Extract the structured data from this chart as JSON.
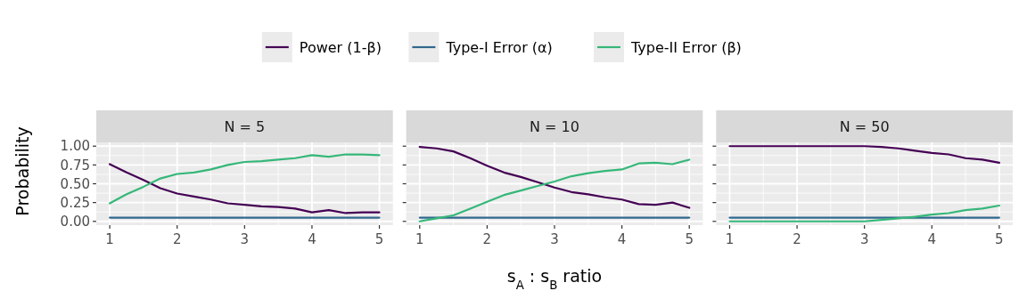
{
  "chart_data": [
    {
      "type": "line",
      "title": "N = 5",
      "ylabel": "Probability",
      "x": [
        1,
        1.25,
        1.5,
        1.75,
        2,
        2.25,
        2.5,
        2.75,
        3,
        3.25,
        3.5,
        3.75,
        4,
        4.25,
        4.5,
        4.75,
        5
      ],
      "xlim": [
        0.8,
        5.2
      ],
      "xticks": [
        1,
        2,
        3,
        4,
        5
      ],
      "ylim": [
        -0.05,
        1.05
      ],
      "yticks": [
        {
          "value": 0,
          "label": "0.00"
        },
        {
          "value": 0.25,
          "label": "0.25"
        },
        {
          "value": 0.5,
          "label": "0.50"
        },
        {
          "value": 0.75,
          "label": "0.75"
        },
        {
          "value": 1,
          "label": "1.00"
        }
      ],
      "grid": true,
      "legend": "top",
      "series": [
        {
          "name": "Power (1-β)",
          "color": "#440154",
          "values": [
            0.76,
            0.65,
            0.55,
            0.44,
            0.37,
            0.33,
            0.29,
            0.24,
            0.22,
            0.2,
            0.19,
            0.17,
            0.12,
            0.15,
            0.11,
            0.12,
            0.12
          ]
        },
        {
          "name": "Type-I Error (α)",
          "color": "#31688e",
          "values": [
            0.05,
            0.05,
            0.05,
            0.05,
            0.05,
            0.05,
            0.05,
            0.05,
            0.05,
            0.05,
            0.05,
            0.05,
            0.05,
            0.05,
            0.05,
            0.05,
            0.05
          ]
        },
        {
          "name": "Type-II Error (β)",
          "color": "#35b779",
          "values": [
            0.24,
            0.36,
            0.46,
            0.57,
            0.63,
            0.65,
            0.69,
            0.75,
            0.79,
            0.8,
            0.82,
            0.84,
            0.88,
            0.86,
            0.89,
            0.89,
            0.88
          ]
        }
      ]
    },
    {
      "type": "line",
      "title": "N = 10",
      "xlabel": "s$_{A}$ : s$_{B}$ ratio",
      "tick_labels": "x",
      "x": [
        1,
        1.25,
        1.5,
        1.75,
        2,
        2.25,
        2.5,
        2.75,
        3,
        3.25,
        3.5,
        3.75,
        4,
        4.25,
        4.5,
        4.75,
        5
      ],
      "xlim": [
        0.8,
        5.2
      ],
      "xticks": [
        1,
        2,
        3,
        4,
        5
      ],
      "ylim": [
        -0.05,
        1.05
      ],
      "yticks": [
        {
          "value": 0,
          "label": null
        },
        {
          "value": 0.25,
          "label": null
        },
        {
          "value": 0.5,
          "label": null
        },
        {
          "value": 0.75,
          "label": null
        },
        {
          "value": 1,
          "label": null
        }
      ],
      "grid": true,
      "series": [
        {
          "color": "#440154",
          "values": [
            0.99,
            0.97,
            0.93,
            0.84,
            0.74,
            0.65,
            0.59,
            0.52,
            0.45,
            0.39,
            0.36,
            0.32,
            0.29,
            0.23,
            0.22,
            0.25,
            0.18
          ]
        },
        {
          "color": "#31688e",
          "values": [
            0.05,
            0.05,
            0.05,
            0.05,
            0.05,
            0.05,
            0.05,
            0.05,
            0.05,
            0.05,
            0.05,
            0.05,
            0.05,
            0.05,
            0.05,
            0.05,
            0.05
          ]
        },
        {
          "color": "#35b779",
          "values": [
            0.0,
            0.04,
            0.08,
            0.17,
            0.26,
            0.35,
            0.41,
            0.47,
            0.53,
            0.6,
            0.64,
            0.67,
            0.69,
            0.77,
            0.78,
            0.76,
            0.82
          ]
        }
      ]
    },
    {
      "type": "line",
      "title": "N = 50",
      "tick_labels": "x",
      "x": [
        1,
        1.25,
        1.5,
        1.75,
        2,
        2.25,
        2.5,
        2.75,
        3,
        3.25,
        3.5,
        3.75,
        4,
        4.25,
        4.5,
        4.75,
        5
      ],
      "xlim": [
        0.8,
        5.2
      ],
      "xticks": [
        1,
        2,
        3,
        4,
        5
      ],
      "ylim": [
        -0.05,
        1.05
      ],
      "yticks": [
        {
          "value": 0,
          "label": null
        },
        {
          "value": 0.25,
          "label": null
        },
        {
          "value": 0.5,
          "label": null
        },
        {
          "value": 0.75,
          "label": null
        },
        {
          "value": 1,
          "label": null
        }
      ],
      "grid": true,
      "series": [
        {
          "color": "#440154",
          "values": [
            1,
            1,
            1,
            1,
            1,
            1,
            1,
            1,
            1,
            0.99,
            0.97,
            0.94,
            0.91,
            0.89,
            0.84,
            0.82,
            0.78
          ]
        },
        {
          "color": "#31688e",
          "values": [
            0.05,
            0.05,
            0.05,
            0.05,
            0.05,
            0.05,
            0.05,
            0.05,
            0.05,
            0.05,
            0.05,
            0.05,
            0.05,
            0.05,
            0.05,
            0.05,
            0.05
          ]
        },
        {
          "color": "#35b779",
          "values": [
            0,
            0,
            0,
            0,
            0,
            0,
            0,
            0,
            0,
            0.02,
            0.04,
            0.06,
            0.09,
            0.11,
            0.15,
            0.17,
            0.21
          ]
        }
      ]
    }
  ]
}
